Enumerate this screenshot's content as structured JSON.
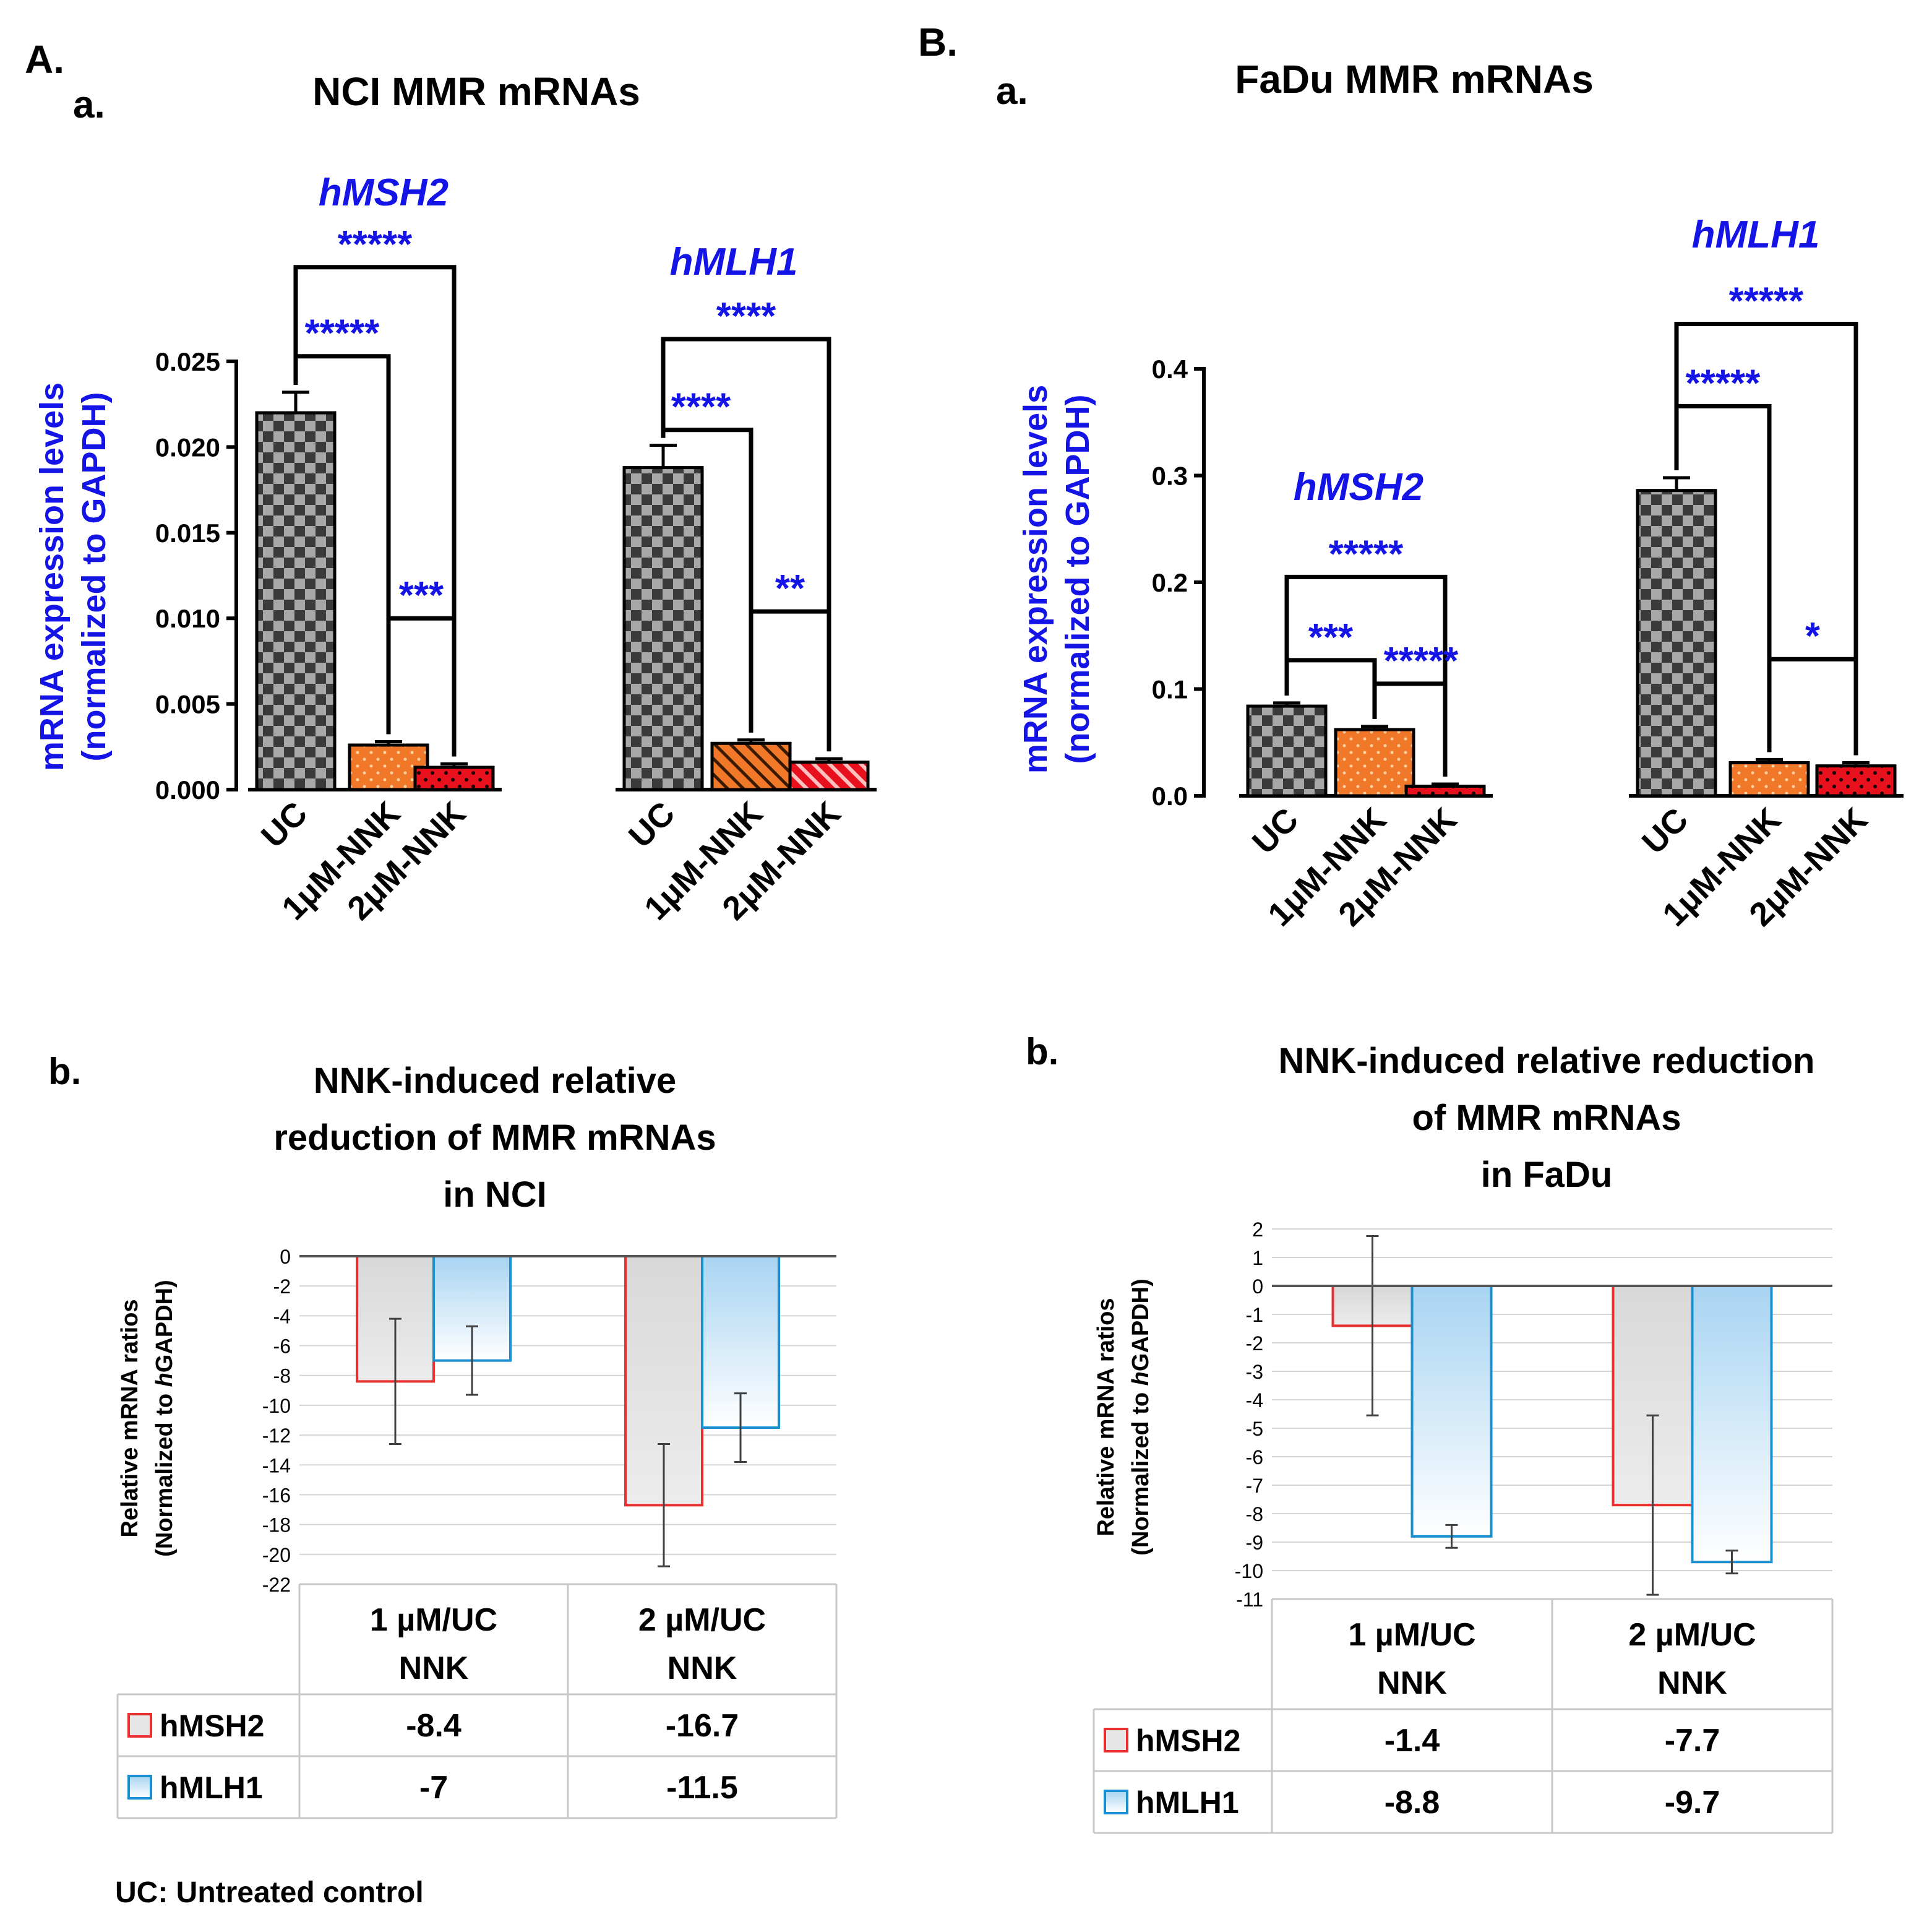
{
  "figure": {
    "section_a": "A.",
    "section_b": "B.",
    "footnote": "UC: Untreated control",
    "colors": {
      "accent_blue": "#1414e6",
      "uc_dark": "#3a3a3a",
      "uc_light": "#a8a8a8",
      "nnk1_orange": "#f07828",
      "nnk2_red": "#e8101c",
      "msh2_line": "#e83030",
      "mlh1_line": "#1a8fd0"
    }
  },
  "chart_data": [
    {
      "id": "A-a",
      "type": "bar",
      "panel_letter": "a.",
      "title": "NCI MMR mRNAs",
      "ylabel_line1": "mRNA expression levels",
      "ylabel_line2": "(normalized to GAPDH)",
      "ylim": [
        0,
        0.025
      ],
      "yticks": [
        0.0,
        0.005,
        0.01,
        0.015,
        0.02,
        0.025
      ],
      "ytick_labels": [
        "0.000",
        "0.005",
        "0.010",
        "0.015",
        "0.020",
        "0.025"
      ],
      "groups": [
        {
          "gene": "hMSH2",
          "categories": [
            "UC",
            "1μM-NNK",
            "2μM-NNK"
          ],
          "values": [
            0.022,
            0.0026,
            0.0013
          ],
          "errors": [
            0.0012,
            0.0002,
            0.0002
          ],
          "significance": [
            {
              "from": 0,
              "to": 1,
              "label": "*****"
            },
            {
              "from": 0,
              "to": 2,
              "label": "*****"
            },
            {
              "from": 1,
              "to": 2,
              "label": "***"
            }
          ]
        },
        {
          "gene": "hMLH1",
          "categories": [
            "UC",
            "1μM-NNK",
            "2μM-NNK"
          ],
          "values": [
            0.0188,
            0.0027,
            0.0016
          ],
          "errors": [
            0.0013,
            0.0002,
            0.0002
          ],
          "significance": [
            {
              "from": 0,
              "to": 1,
              "label": "****"
            },
            {
              "from": 0,
              "to": 2,
              "label": "****"
            },
            {
              "from": 1,
              "to": 2,
              "label": "**"
            }
          ]
        }
      ]
    },
    {
      "id": "B-a",
      "type": "bar",
      "panel_letter": "a.",
      "title": "FaDu MMR mRNAs",
      "ylabel_line1": "mRNA expression levels",
      "ylabel_line2": "(normalized to GAPDH)",
      "ylim": [
        0,
        0.4
      ],
      "yticks": [
        0.0,
        0.1,
        0.2,
        0.3,
        0.4
      ],
      "ytick_labels": [
        "0.0",
        "0.1",
        "0.2",
        "0.3",
        "0.4"
      ],
      "groups": [
        {
          "gene": "hMSH2",
          "categories": [
            "UC",
            "1μM-NNK",
            "2μM-NNK"
          ],
          "values": [
            0.084,
            0.062,
            0.009
          ],
          "errors": [
            0.003,
            0.003,
            0.002
          ],
          "significance": [
            {
              "from": 0,
              "to": 1,
              "label": "***"
            },
            {
              "from": 0,
              "to": 2,
              "label": "*****"
            },
            {
              "from": 1,
              "to": 2,
              "label": "*****"
            }
          ]
        },
        {
          "gene": "hMLH1",
          "categories": [
            "UC",
            "1μM-NNK",
            "2μM-NNK"
          ],
          "values": [
            0.286,
            0.031,
            0.028
          ],
          "errors": [
            0.012,
            0.003,
            0.003
          ],
          "significance": [
            {
              "from": 0,
              "to": 1,
              "label": "*****"
            },
            {
              "from": 0,
              "to": 2,
              "label": "*****"
            },
            {
              "from": 1,
              "to": 2,
              "label": "*"
            }
          ]
        }
      ]
    },
    {
      "id": "A-b",
      "type": "bar",
      "panel_letter": "b.",
      "title_lines": [
        "NNK-induced  relative",
        "reduction  of MMR mRNAs",
        "in NCI"
      ],
      "ylabel_line1": "Relative mRNA ratios",
      "ylabel_line2_pre": "(Normalized to ",
      "ylabel_line2_it": "h",
      "ylabel_line2_post": "GAPDH)",
      "ylim": [
        -22,
        0
      ],
      "yticks": [
        0,
        -2,
        -4,
        -6,
        -8,
        -10,
        -12,
        -14,
        -16,
        -18,
        -20,
        -22
      ],
      "categories": [
        "1 µM/UC",
        "2 µM/UC"
      ],
      "categories_line2": [
        "NNK",
        "NNK"
      ],
      "series": [
        {
          "name": "hMSH2",
          "values": [
            -8.4,
            -16.7
          ],
          "errors": [
            4.2,
            4.1
          ]
        },
        {
          "name": "hMLH1",
          "values": [
            -7,
            -11.5
          ],
          "errors": [
            2.3,
            2.3
          ]
        }
      ],
      "value_labels": [
        [
          "-8.4",
          "-16.7"
        ],
        [
          "-7",
          "-11.5"
        ]
      ]
    },
    {
      "id": "B-b",
      "type": "bar",
      "panel_letter": "b.",
      "title_lines": [
        "NNK-induced  relative  reduction",
        "of MMR mRNAs",
        "in FaDu"
      ],
      "ylabel_line1": "Relative mRNA ratios",
      "ylabel_line2_pre": "(Normalized to ",
      "ylabel_line2_it": "h",
      "ylabel_line2_post": "GAPDH)",
      "ylim": [
        -11,
        2
      ],
      "yticks": [
        2,
        1,
        0,
        -1,
        -2,
        -3,
        -4,
        -5,
        -6,
        -7,
        -8,
        -9,
        -10,
        -11
      ],
      "categories": [
        "1 µM/UC",
        "2 µM/UC"
      ],
      "categories_line2": [
        "NNK",
        "NNK"
      ],
      "series": [
        {
          "name": "hMSH2",
          "values": [
            -1.4,
            -7.7
          ],
          "errors": [
            3.15,
            3.15
          ]
        },
        {
          "name": "hMLH1",
          "values": [
            -8.8,
            -9.7
          ],
          "errors": [
            0.4,
            0.4
          ]
        }
      ],
      "value_labels": [
        [
          "-1.4",
          "-7.7"
        ],
        [
          "-8.8",
          "-9.7"
        ]
      ]
    }
  ]
}
